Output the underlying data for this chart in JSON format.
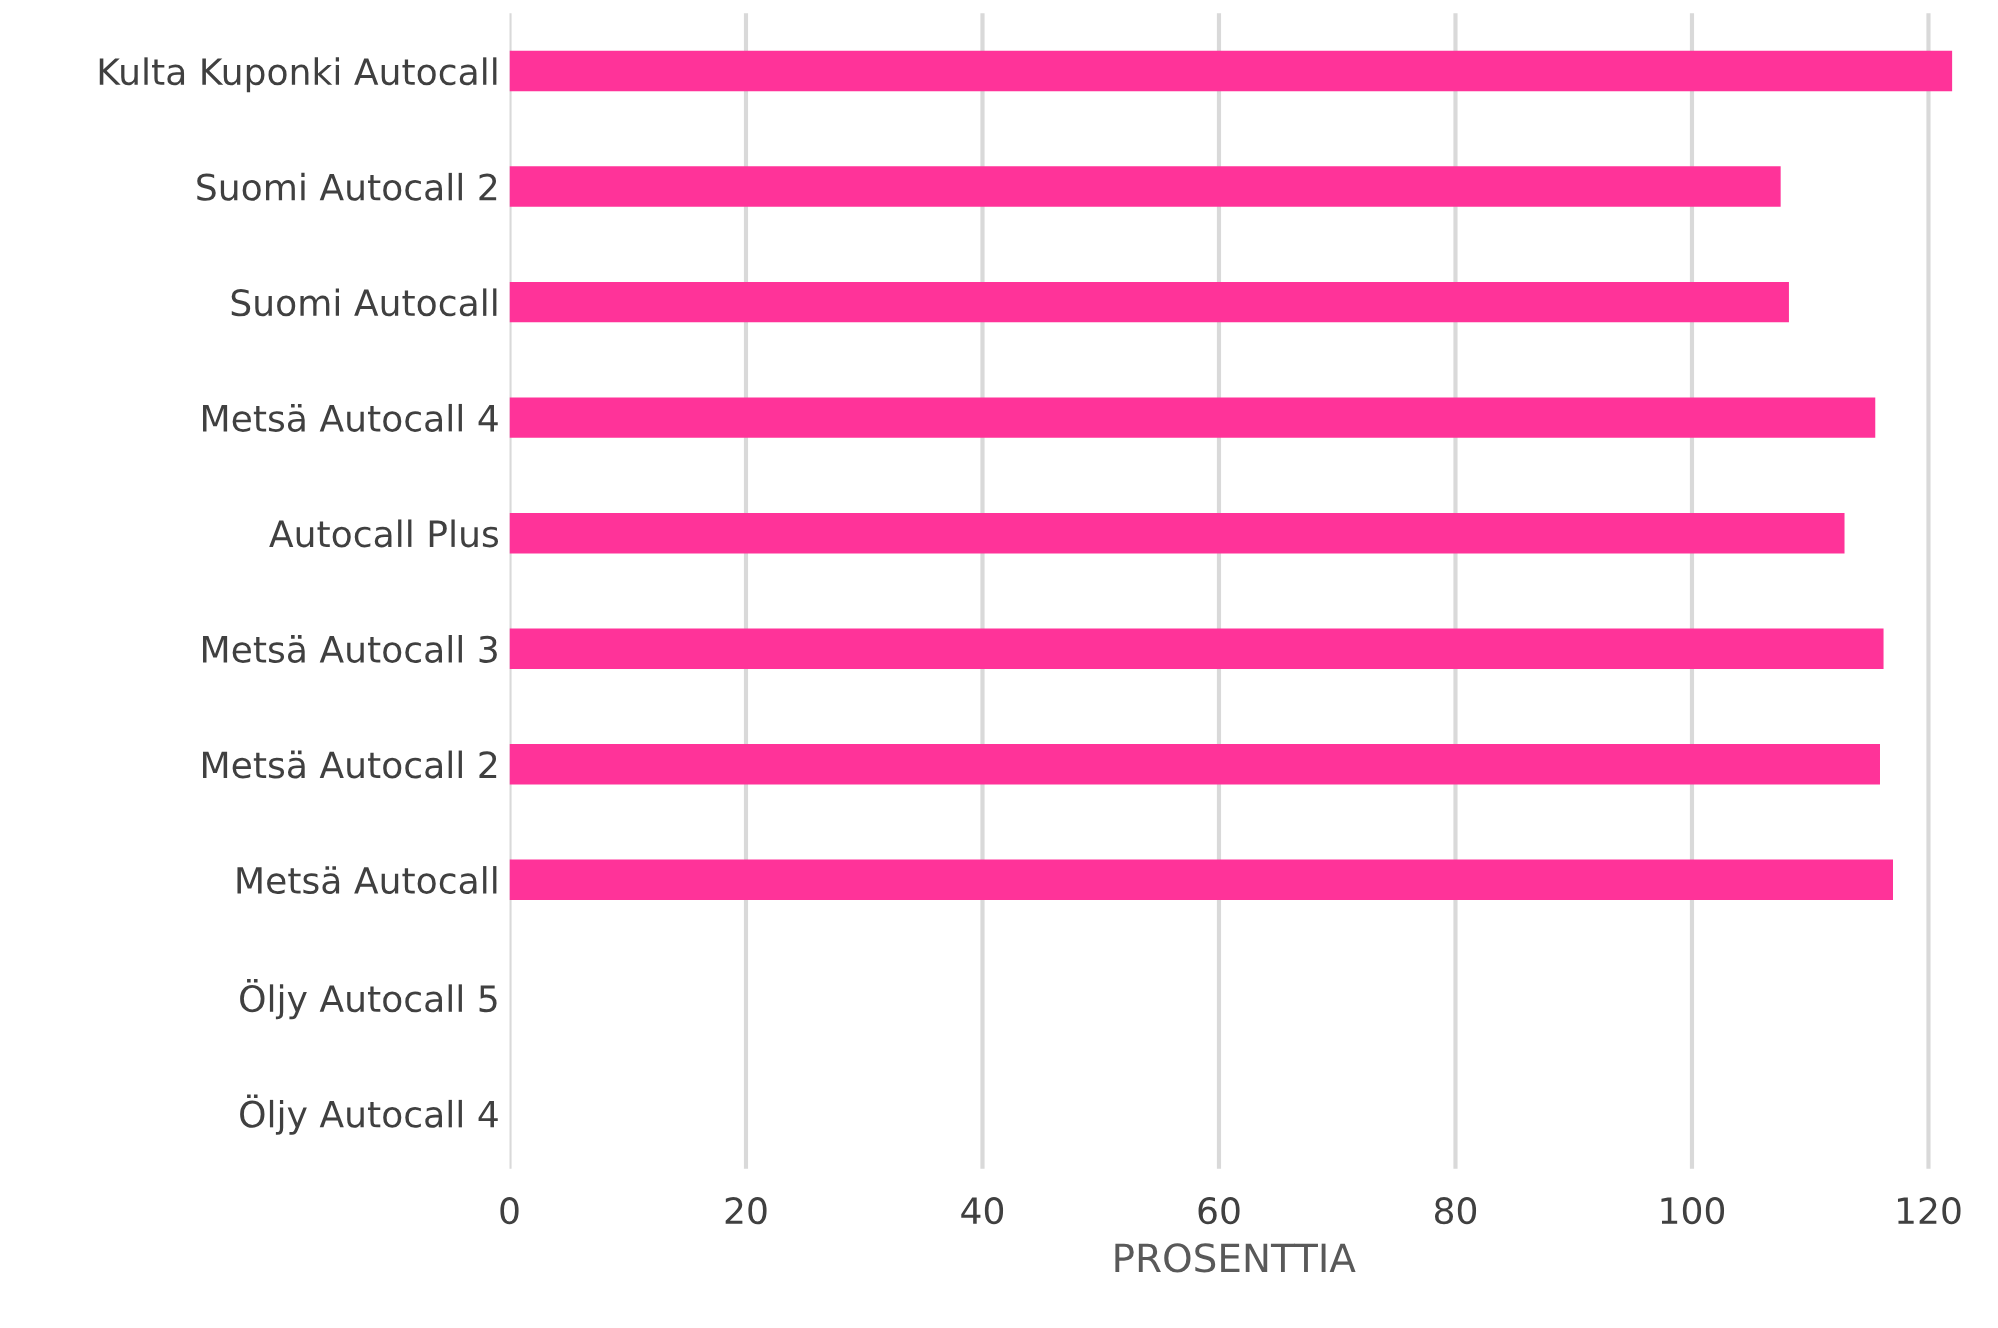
{
  "chart_data": {
    "type": "bar",
    "orientation": "horizontal",
    "xlabel": "PROSENTTIA",
    "categories": [
      "Kulta Kuponki Autocall",
      "Suomi Autocall 2",
      "Suomi Autocall",
      "Metsä Autocall 4",
      "Autocall Plus",
      "Metsä Autocall 3",
      "Metsä Autocall 2",
      "Metsä Autocall",
      "Öljy Autocall 5",
      "Öljy Autocall 4"
    ],
    "values": [
      122.0,
      107.5,
      108.2,
      115.5,
      112.9,
      116.2,
      115.9,
      117.0,
      null,
      null
    ],
    "color": "#ff3399",
    "xlim": [
      0,
      122.5
    ],
    "xticks": [
      0,
      20,
      40,
      60,
      80,
      100,
      120
    ],
    "grid": "x",
    "legend": false
  }
}
